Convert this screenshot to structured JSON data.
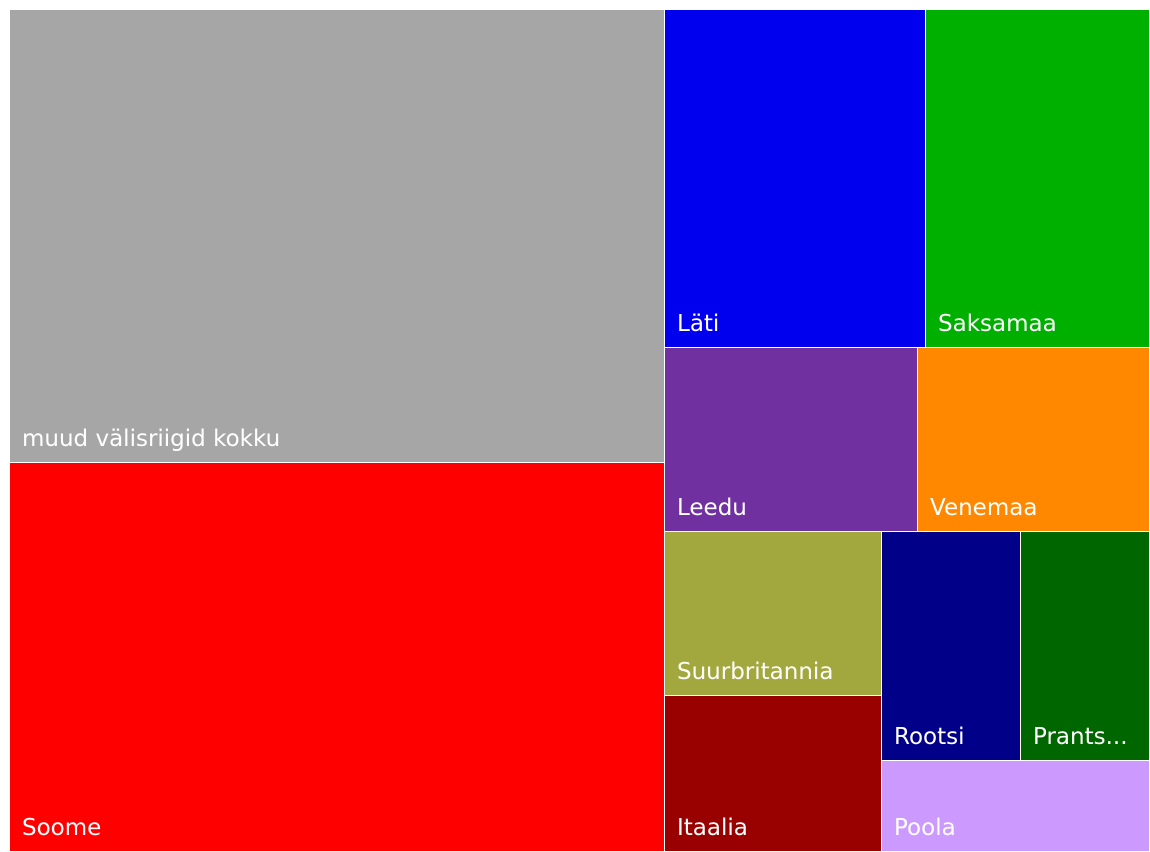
{
  "chart_data": {
    "type": "treemap",
    "title": "",
    "items": [
      {
        "label": "muud välisriigid kokku",
        "value": 296000,
        "color": "#a6a6a6"
      },
      {
        "label": "Soome",
        "value": 254000,
        "color": "#ff0000"
      },
      {
        "label": "Läti",
        "value": 87700,
        "color": "#0000ee"
      },
      {
        "label": "Saksamaa",
        "value": 75600,
        "color": "#00b000"
      },
      {
        "label": "Leedu",
        "value": 46100,
        "color": "#7030a0"
      },
      {
        "label": "Venemaa",
        "value": 42500,
        "color": "#ff8800"
      },
      {
        "label": "Suurbritannia",
        "value": 35500,
        "color": "#a3a83e"
      },
      {
        "label": "Itaalia",
        "value": 33700,
        "color": "#990000"
      },
      {
        "label": "Rootsi",
        "value": 31700,
        "color": "#000088"
      },
      {
        "label": "Prants...",
        "value": 29500,
        "color": "#006600"
      },
      {
        "label": "Poola",
        "value": 24300,
        "color": "#cc99ff"
      }
    ]
  }
}
